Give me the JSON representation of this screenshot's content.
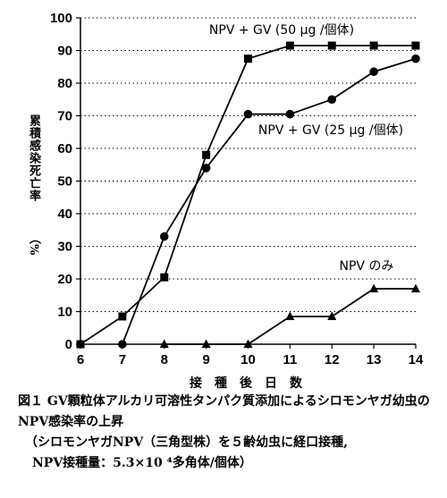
{
  "chart_data": {
    "type": "line",
    "xlabel": "接　種　後　日　数",
    "ylabel": "累積感染死亡率",
    "yunit": "（%",
    "x": [
      6,
      7,
      8,
      9,
      10,
      11,
      12,
      13,
      14
    ],
    "xlim": [
      6,
      14
    ],
    "ylim": [
      0,
      100
    ],
    "yticks": [
      0,
      10,
      20,
      30,
      40,
      50,
      60,
      70,
      80,
      90,
      100
    ],
    "grid": "horizontal dotted",
    "series": [
      {
        "name": "NPV + GV (50 μg /個体)",
        "marker": "square",
        "x": [
          6,
          7,
          8,
          9,
          10,
          11,
          12,
          13,
          14
        ],
        "values": [
          0,
          8.5,
          20.5,
          58,
          87.5,
          91.5,
          91.5,
          91.5,
          91.5
        ]
      },
      {
        "name": "NPV + GV (25 μg /個体)",
        "marker": "circle",
        "x": [
          7,
          8,
          9,
          10,
          11,
          12,
          13,
          14
        ],
        "values": [
          0,
          33,
          54,
          70.5,
          70.5,
          75,
          83.5,
          87.5
        ]
      },
      {
        "name": "NPV のみ",
        "marker": "triangle",
        "x": [
          8,
          9,
          10,
          11,
          12,
          13,
          14
        ],
        "values": [
          0,
          0,
          0,
          8.5,
          8.5,
          17,
          17
        ]
      }
    ]
  },
  "caption": {
    "line1": "図１ GV顆粒体アルカリ可溶性タンパク質添加によるシロモンヤガ幼虫の",
    "line2": "NPV感染率の上昇",
    "line3": "（シロモンヤガNPV（三角型株）を５齢幼虫に経口接種,",
    "line4": "NPV接種量：5.3×10 ⁴多角体/個体）"
  },
  "colors": {
    "ink": "#000000",
    "background": "#ffffff"
  }
}
